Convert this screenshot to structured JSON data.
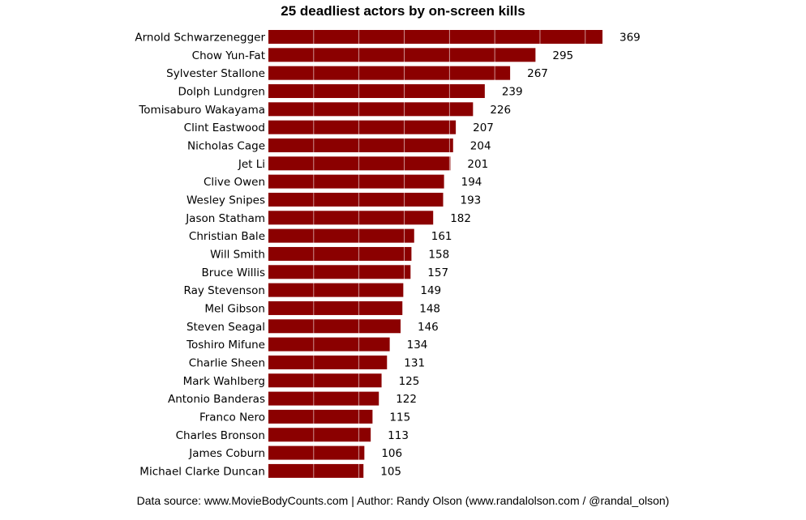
{
  "chart_data": {
    "type": "bar",
    "orientation": "horizontal",
    "title": "25 deadliest actors by on-screen kills",
    "xlabel": "",
    "ylabel": "",
    "xlim": [
      0,
      369
    ],
    "grid": true,
    "legend": "none",
    "bar_color": "#8b0000",
    "categories": [
      "Arnold Schwarzenegger",
      "Chow Yun-Fat",
      "Sylvester Stallone",
      "Dolph Lundgren",
      "Tomisaburo Wakayama",
      "Clint Eastwood",
      "Nicholas Cage",
      "Jet Li",
      "Clive Owen",
      "Wesley Snipes",
      "Jason Statham",
      "Christian Bale",
      "Will Smith",
      "Bruce Willis",
      "Ray Stevenson",
      "Mel Gibson",
      "Steven Seagal",
      "Toshiro Mifune",
      "Charlie Sheen",
      "Mark Wahlberg",
      "Antonio Banderas",
      "Franco Nero",
      "Charles Bronson",
      "James Coburn",
      "Michael Clarke Duncan"
    ],
    "values": [
      369,
      295,
      267,
      239,
      226,
      207,
      204,
      201,
      194,
      193,
      182,
      161,
      158,
      157,
      149,
      148,
      146,
      134,
      131,
      125,
      122,
      115,
      113,
      106,
      105
    ]
  },
  "footer": {
    "source": "Data source: www.MovieBodyCounts.com | Author: Randy Olson (www.randalolson.com / @randal_olson)"
  }
}
